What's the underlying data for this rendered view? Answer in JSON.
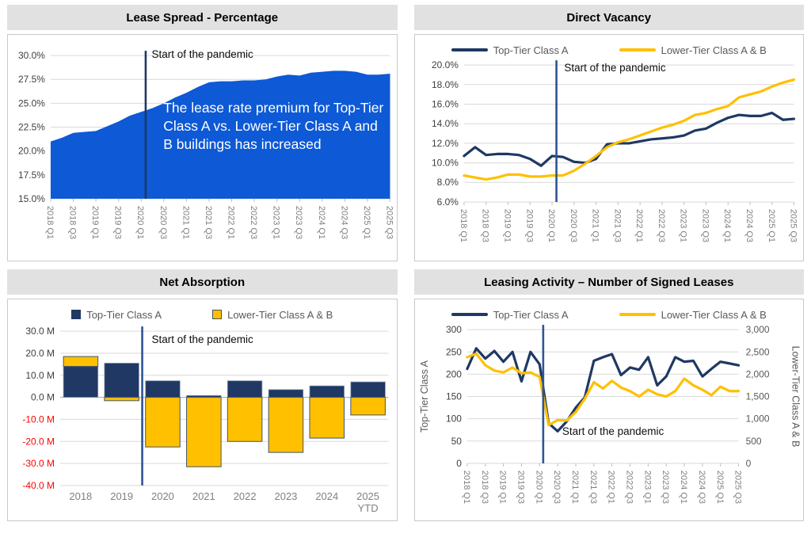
{
  "chart_data": [
    {
      "title": "Lease Spread - Percentage",
      "type": "area",
      "annotation": "Start of the pandemic",
      "callout": "The lease rate premium for Top-Tier Class A vs. Lower-Tier Class A and B buildings has increased",
      "fill": "#0d59d6",
      "vline_x": 8.4,
      "vline_color": "#1f3864",
      "ylim": [
        15,
        30
      ],
      "ystep": 2.5,
      "yfmt": "pct",
      "n_points": 31,
      "x_labels": [
        "2018 Q1",
        "2018 Q3",
        "2019 Q1",
        "2019 Q3",
        "2020 Q1",
        "2020 Q3",
        "2021 Q1",
        "2021 Q3",
        "2022 Q1",
        "2022 Q3",
        "2023 Q1",
        "2023 Q3",
        "2024 Q1",
        "2024 Q3",
        "2025 Q1",
        "2025 Q3"
      ],
      "values": [
        21.0,
        21.4,
        21.9,
        22.0,
        22.1,
        22.6,
        23.1,
        23.7,
        24.1,
        24.5,
        25.0,
        25.6,
        26.1,
        26.7,
        27.2,
        27.3,
        27.3,
        27.4,
        27.4,
        27.5,
        27.8,
        28.0,
        27.9,
        28.2,
        28.3,
        28.4,
        28.4,
        28.3,
        28.0,
        28.0,
        28.1
      ]
    },
    {
      "title": "Direct Vacancy",
      "type": "line",
      "annotation": "Start of the pandemic",
      "vline_x": 8.4,
      "vline_color": "#2f5496",
      "ylim": [
        6,
        20
      ],
      "ystep": 2,
      "yfmt": "pct",
      "n_points": 31,
      "x_labels": [
        "2018 Q1",
        "2018 Q3",
        "2019 Q1",
        "2019 Q3",
        "2020 Q1",
        "2020 Q3",
        "2021 Q1",
        "2021 Q3",
        "2022 Q1",
        "2022 Q3",
        "2023 Q1",
        "2023 Q3",
        "2024 Q1",
        "2024 Q3",
        "2025 Q1",
        "2025 Q3"
      ],
      "series": [
        {
          "name": "Top-Tier Class A",
          "color": "#1f3864",
          "values": [
            10.7,
            11.6,
            10.8,
            10.9,
            10.9,
            10.8,
            10.4,
            9.7,
            10.7,
            10.6,
            10.1,
            10.0,
            10.4,
            11.9,
            12.0,
            12.0,
            12.2,
            12.4,
            12.5,
            12.6,
            12.8,
            13.3,
            13.5,
            14.1,
            14.6,
            14.9,
            14.8,
            14.8,
            15.1,
            14.4,
            14.5
          ]
        },
        {
          "name": "Lower-Tier Class A & B",
          "color": "#ffc000",
          "values": [
            8.7,
            8.5,
            8.3,
            8.5,
            8.8,
            8.8,
            8.6,
            8.6,
            8.7,
            8.7,
            9.2,
            9.9,
            10.7,
            11.6,
            12.1,
            12.4,
            12.8,
            13.2,
            13.6,
            13.9,
            14.3,
            14.9,
            15.1,
            15.5,
            15.8,
            16.7,
            17.0,
            17.3,
            17.8,
            18.2,
            18.5
          ]
        }
      ]
    },
    {
      "title": "Net Absorption",
      "type": "stacked-bar",
      "annotation": "Start of the pandemic",
      "vline_x": 2,
      "vline_color": "#2f5496",
      "ylim": [
        -40,
        30
      ],
      "ystep": 10,
      "yfmt": "m",
      "neg_red": true,
      "categories": [
        "2018",
        "2019",
        "2020",
        "2021",
        "2022",
        "2023",
        "2024",
        "2025 YTD"
      ],
      "series": [
        {
          "name": "Top-Tier Class A",
          "color": "#1f3864",
          "values": [
            14.0,
            15.5,
            7.5,
            0.8,
            7.5,
            3.5,
            5.2,
            7.0
          ]
        },
        {
          "name": "Lower-Tier Class A & B",
          "color": "#ffc000",
          "values": [
            4.5,
            -1.5,
            -22.5,
            -31.5,
            -20.0,
            -25.0,
            -18.5,
            -8.0
          ]
        }
      ]
    },
    {
      "title": "Leasing Activity – Number of Signed Leases",
      "type": "line-dual",
      "annotation": "Start of the pandemic",
      "vline_x": 8.4,
      "vline_color": "#2f5496",
      "ylim": [
        0,
        300
      ],
      "ystep": 50,
      "yfmt": "int",
      "axis_left_title": "Top-Tier Class A",
      "axis_right": {
        "title": "Lower-Tier Class A & B",
        "ylim": [
          0,
          3000
        ],
        "yfmt": "comma"
      },
      "n_points": 31,
      "x_labels": [
        "2018 Q1",
        "2018 Q3",
        "2019 Q1",
        "2019 Q3",
        "2020 Q1",
        "2020 Q3",
        "2021 Q1",
        "2021 Q3",
        "2022 Q1",
        "2022 Q3",
        "2023 Q1",
        "2023 Q3",
        "2024 Q1",
        "2024 Q3",
        "2025 Q1",
        "2025 Q3"
      ],
      "series": [
        {
          "name": "Top-Tier Class A",
          "color": "#1f3864",
          "axis": "left",
          "values": [
            212,
            258,
            235,
            252,
            228,
            250,
            184,
            250,
            222,
            90,
            72,
            94,
            125,
            148,
            230,
            238,
            245,
            198,
            215,
            210,
            238,
            175,
            195,
            238,
            228,
            230,
            195,
            212,
            228,
            224,
            220
          ]
        },
        {
          "name": "Lower-Tier Class A & B",
          "color": "#ffc000",
          "axis": "right",
          "values": [
            2380,
            2460,
            2200,
            2080,
            2040,
            2150,
            2020,
            2040,
            1940,
            860,
            970,
            960,
            1150,
            1450,
            1820,
            1680,
            1850,
            1700,
            1620,
            1500,
            1650,
            1550,
            1500,
            1620,
            1900,
            1750,
            1650,
            1530,
            1720,
            1620,
            1620
          ]
        }
      ]
    }
  ]
}
